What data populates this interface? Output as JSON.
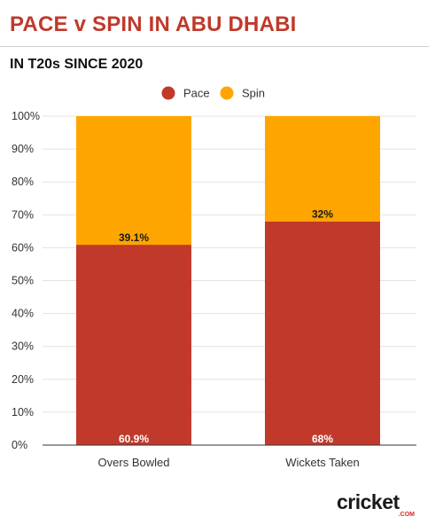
{
  "header": {
    "title": "PACE v SPIN IN ABU DHABI",
    "subtitle": "IN T20s SINCE 2020"
  },
  "brand": {
    "logo_word": "cricket",
    "logo_domain": ".COM",
    "logo_color": "#d62828"
  },
  "chart_data": {
    "type": "bar",
    "stacked": true,
    "categories": [
      "Overs Bowled",
      "Wickets Taken"
    ],
    "series": [
      {
        "name": "Pace",
        "color": "#c0392b",
        "values": [
          60.9,
          68
        ],
        "labels": [
          "60.9%",
          "68%"
        ]
      },
      {
        "name": "Spin",
        "color": "#ffa500",
        "values": [
          39.1,
          32
        ],
        "labels": [
          "39.1%",
          "32%"
        ]
      }
    ],
    "title": "PACE v SPIN IN ABU DHABI",
    "subtitle": "IN T20s SINCE 2020",
    "xlabel": "",
    "ylabel": "",
    "ylim": [
      0,
      100
    ],
    "yticks": [
      "0%",
      "10%",
      "20%",
      "30%",
      "40%",
      "50%",
      "60%",
      "70%",
      "80%",
      "90%",
      "100%"
    ],
    "grid": true,
    "legend": "top-center"
  }
}
